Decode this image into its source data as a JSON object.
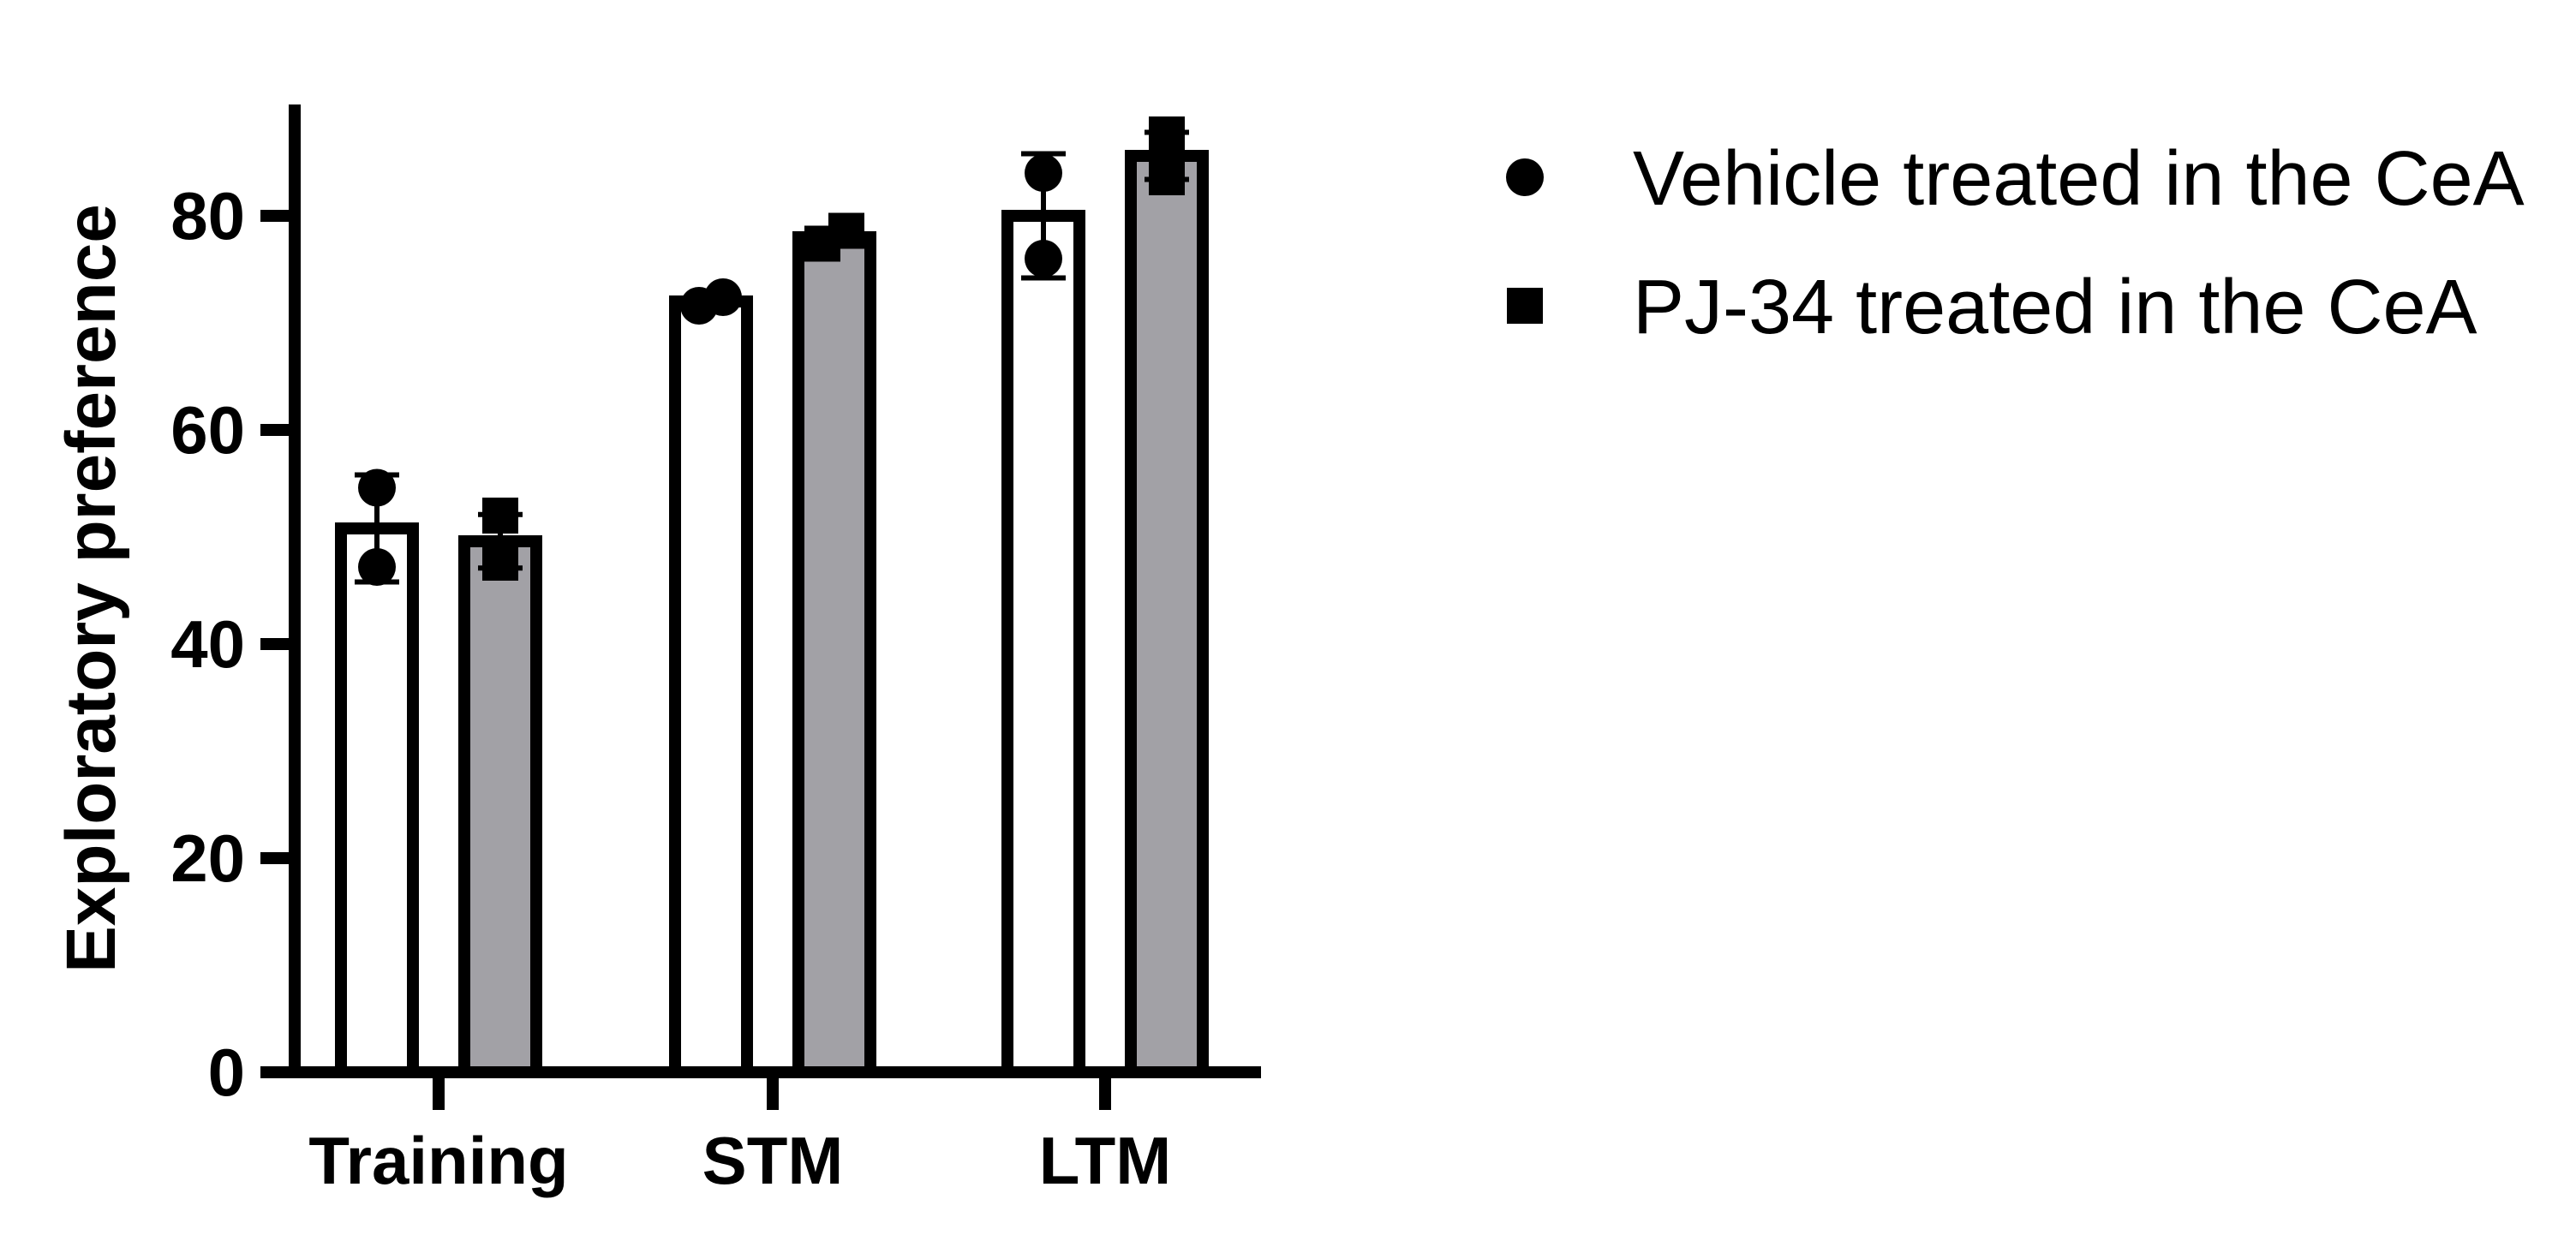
{
  "chart_data": {
    "type": "bar",
    "title": "",
    "xlabel": "",
    "ylabel": "Exploratory preference",
    "ylim": [
      0,
      90
    ],
    "yticks": [
      0,
      20,
      40,
      60,
      80
    ],
    "categories": [
      "Training",
      "STM",
      "LTM"
    ],
    "legend_position": "top-right",
    "grid": false,
    "series": [
      {
        "name": "Vehicle treated in the CeA",
        "marker": "circle",
        "fill": "#ffffff",
        "values": [
          50.8,
          72.0,
          80.0
        ],
        "error": [
          5.0,
          0.6,
          5.8
        ],
        "points": [
          [
            54.6,
            47.2
          ],
          [
            71.6,
            72.4
          ],
          [
            84.0,
            76.0
          ]
        ]
      },
      {
        "name": "PJ-34 treated in the CeA",
        "marker": "square",
        "fill": "#a2a1a6",
        "values": [
          49.6,
          78.0,
          85.6
        ],
        "error": [
          2.5,
          0.7,
          2.2
        ],
        "points": [
          [
            52.0,
            47.6
          ],
          [
            77.4,
            78.6
          ],
          [
            87.6,
            83.6
          ]
        ]
      }
    ]
  }
}
